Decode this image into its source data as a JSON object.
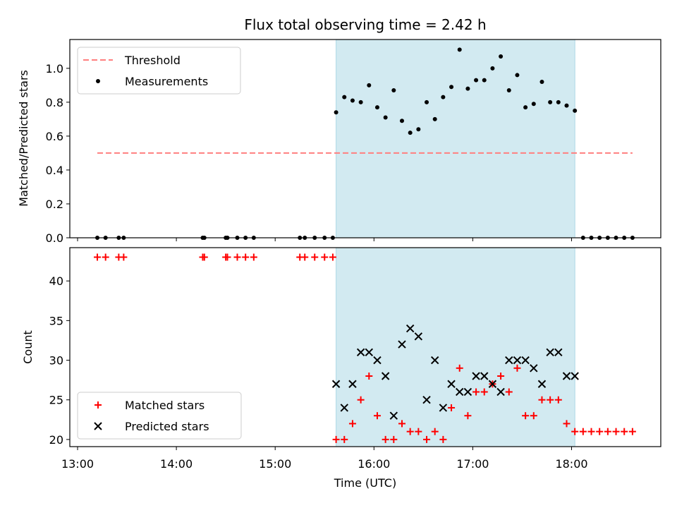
{
  "chart_data": {
    "type": "scatter",
    "title": "Flux total observing time = 2.42 h",
    "xlabel": "Time (UTC)",
    "x_ticks": [
      "13:00",
      "14:00",
      "15:00",
      "16:00",
      "17:00",
      "18:00"
    ],
    "highlight_span": {
      "start": "15:37",
      "end": "18:02",
      "color": "#add8e6"
    },
    "panels": [
      {
        "ylabel": "Matched/Predicted stars",
        "ylim": [
          0,
          1.17
        ],
        "yticks": [
          "0.0",
          "0.2",
          "0.4",
          "0.6",
          "0.8",
          "1.0"
        ],
        "legend_position": "upper-left",
        "series": [
          {
            "name": "Threshold",
            "style": "dashed-line",
            "color": "#ff7f7f",
            "points": [
              [
                "13:12",
                0.5
              ],
              [
                "18:37",
                0.5
              ]
            ]
          },
          {
            "name": "Measurements",
            "style": "dot",
            "color": "#000000",
            "points": [
              [
                "13:12",
                0
              ],
              [
                "13:17",
                0
              ],
              [
                "13:25",
                0
              ],
              [
                "13:28",
                0
              ],
              [
                "14:16",
                0
              ],
              [
                "14:17",
                0
              ],
              [
                "14:30",
                0
              ],
              [
                "14:31",
                0
              ],
              [
                "14:37",
                0
              ],
              [
                "14:42",
                0
              ],
              [
                "14:47",
                0
              ],
              [
                "15:15",
                0
              ],
              [
                "15:18",
                0
              ],
              [
                "15:24",
                0
              ],
              [
                "15:30",
                0
              ],
              [
                "15:35",
                0
              ],
              [
                "15:37",
                0.74
              ],
              [
                "15:42",
                0.83
              ],
              [
                "15:47",
                0.81
              ],
              [
                "15:52",
                0.8
              ],
              [
                "15:57",
                0.9
              ],
              [
                "16:02",
                0.77
              ],
              [
                "16:07",
                0.71
              ],
              [
                "16:12",
                0.87
              ],
              [
                "16:17",
                0.69
              ],
              [
                "16:22",
                0.62
              ],
              [
                "16:27",
                0.64
              ],
              [
                "16:32",
                0.8
              ],
              [
                "16:37",
                0.7
              ],
              [
                "16:42",
                0.83
              ],
              [
                "16:47",
                0.89
              ],
              [
                "16:52",
                1.11
              ],
              [
                "16:57",
                0.88
              ],
              [
                "17:02",
                0.93
              ],
              [
                "17:07",
                0.93
              ],
              [
                "17:12",
                1.0
              ],
              [
                "17:17",
                1.07
              ],
              [
                "17:22",
                0.87
              ],
              [
                "17:27",
                0.96
              ],
              [
                "17:32",
                0.77
              ],
              [
                "17:37",
                0.79
              ],
              [
                "17:42",
                0.92
              ],
              [
                "17:47",
                0.8
              ],
              [
                "17:52",
                0.8
              ],
              [
                "17:57",
                0.78
              ],
              [
                "18:02",
                0.75
              ],
              [
                "18:07",
                0
              ],
              [
                "18:12",
                0
              ],
              [
                "18:17",
                0
              ],
              [
                "18:22",
                0
              ],
              [
                "18:27",
                0
              ],
              [
                "18:32",
                0
              ],
              [
                "18:37",
                0
              ]
            ]
          }
        ]
      },
      {
        "ylabel": "Count",
        "ylim": [
          19.1,
          44.2
        ],
        "yticks": [
          "20",
          "25",
          "30",
          "35",
          "40"
        ],
        "legend_position": "lower-left",
        "series": [
          {
            "name": "Matched stars",
            "style": "plus",
            "color": "#ff0000",
            "points": [
              [
                "13:12",
                43
              ],
              [
                "13:17",
                43
              ],
              [
                "13:25",
                43
              ],
              [
                "13:28",
                43
              ],
              [
                "14:16",
                43
              ],
              [
                "14:17",
                43
              ],
              [
                "14:30",
                43
              ],
              [
                "14:31",
                43
              ],
              [
                "14:37",
                43
              ],
              [
                "14:42",
                43
              ],
              [
                "14:47",
                43
              ],
              [
                "15:15",
                43
              ],
              [
                "15:18",
                43
              ],
              [
                "15:24",
                43
              ],
              [
                "15:30",
                43
              ],
              [
                "15:35",
                43
              ],
              [
                "15:37",
                20
              ],
              [
                "15:42",
                20
              ],
              [
                "15:47",
                22
              ],
              [
                "15:52",
                25
              ],
              [
                "15:57",
                28
              ],
              [
                "16:02",
                23
              ],
              [
                "16:07",
                20
              ],
              [
                "16:12",
                20
              ],
              [
                "16:17",
                22
              ],
              [
                "16:22",
                21
              ],
              [
                "16:27",
                21
              ],
              [
                "16:32",
                20
              ],
              [
                "16:37",
                21
              ],
              [
                "16:42",
                20
              ],
              [
                "16:47",
                24
              ],
              [
                "16:52",
                29
              ],
              [
                "16:57",
                23
              ],
              [
                "17:02",
                26
              ],
              [
                "17:07",
                26
              ],
              [
                "17:12",
                27
              ],
              [
                "17:17",
                28
              ],
              [
                "17:22",
                26
              ],
              [
                "17:27",
                29
              ],
              [
                "17:32",
                23
              ],
              [
                "17:37",
                23
              ],
              [
                "17:42",
                25
              ],
              [
                "17:47",
                25
              ],
              [
                "17:52",
                25
              ],
              [
                "17:57",
                22
              ],
              [
                "18:02",
                21
              ],
              [
                "18:07",
                21
              ],
              [
                "18:12",
                21
              ],
              [
                "18:17",
                21
              ],
              [
                "18:22",
                21
              ],
              [
                "18:27",
                21
              ],
              [
                "18:32",
                21
              ],
              [
                "18:37",
                21
              ]
            ]
          },
          {
            "name": "Predicted stars",
            "style": "cross",
            "color": "#000000",
            "points": [
              [
                "15:37",
                27
              ],
              [
                "15:42",
                24
              ],
              [
                "15:47",
                27
              ],
              [
                "15:52",
                31
              ],
              [
                "15:57",
                31
              ],
              [
                "16:02",
                30
              ],
              [
                "16:07",
                28
              ],
              [
                "16:12",
                23
              ],
              [
                "16:17",
                32
              ],
              [
                "16:22",
                34
              ],
              [
                "16:27",
                33
              ],
              [
                "16:32",
                25
              ],
              [
                "16:37",
                30
              ],
              [
                "16:42",
                24
              ],
              [
                "16:47",
                27
              ],
              [
                "16:52",
                26
              ],
              [
                "16:57",
                26
              ],
              [
                "17:02",
                28
              ],
              [
                "17:07",
                28
              ],
              [
                "17:12",
                27
              ],
              [
                "17:17",
                26
              ],
              [
                "17:22",
                30
              ],
              [
                "17:27",
                30
              ],
              [
                "17:32",
                30
              ],
              [
                "17:37",
                29
              ],
              [
                "17:42",
                27
              ],
              [
                "17:47",
                31
              ],
              [
                "17:52",
                31
              ],
              [
                "17:57",
                28
              ],
              [
                "18:02",
                28
              ]
            ]
          }
        ]
      }
    ]
  }
}
